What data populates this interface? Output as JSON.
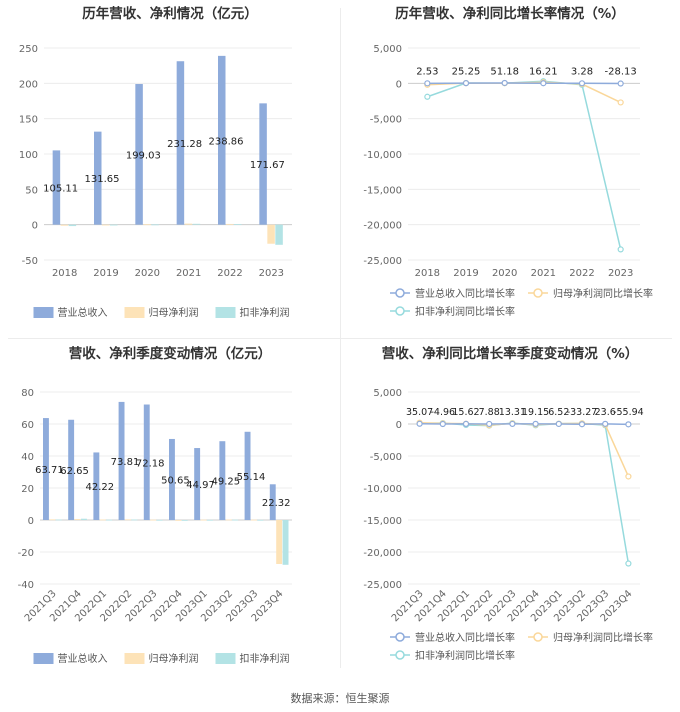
{
  "colors": {
    "revenue": "#8eabdb",
    "net_profit": "#fde3b8",
    "deducted_profit": "#b3e3e5",
    "revenue_growth": "#8eabdb",
    "net_profit_growth": "#fad79a",
    "deducted_profit_growth": "#96dadd"
  },
  "footer": "数据来源：恒生聚源",
  "chart_data": [
    {
      "id": "annual-revenue-profit",
      "type": "bar",
      "title": "历年营收、净利情况（亿元）",
      "categories": [
        "2018",
        "2019",
        "2020",
        "2021",
        "2022",
        "2023"
      ],
      "series": [
        {
          "name": "营业总收入",
          "values": [
            105.11,
            131.65,
            199.03,
            231.28,
            238.86,
            171.67
          ]
        },
        {
          "name": "归母净利润",
          "values": [
            -1.5,
            -0.5,
            0.5,
            1.5,
            1.0,
            -27.0
          ]
        },
        {
          "name": "扣非净利润",
          "values": [
            -2.0,
            -0.8,
            0.3,
            1.2,
            0.8,
            -28.5
          ]
        }
      ],
      "data_labels": [
        "105.11",
        "131.65",
        "199.03",
        "231.28",
        "238.86",
        "171.67"
      ],
      "yticks": [
        "250",
        "200",
        "150",
        "100",
        "50",
        "0",
        "-50"
      ],
      "ylim": [
        -50,
        250
      ],
      "legend": "bottom"
    },
    {
      "id": "annual-growth",
      "type": "line",
      "title": "历年营收、净利同比增长率情况（%）",
      "categories": [
        "2018",
        "2019",
        "2020",
        "2021",
        "2022",
        "2023"
      ],
      "series": [
        {
          "name": "营业总收入同比增长率",
          "values": [
            2.53,
            25.25,
            51.18,
            16.21,
            3.28,
            -28.13
          ]
        },
        {
          "name": "归母净利润同比增长率",
          "values": [
            -200,
            30,
            20,
            150,
            -100,
            -2700
          ]
        },
        {
          "name": "扣非净利润同比增长率",
          "values": [
            -1900,
            40,
            20,
            300,
            -200,
            -23500
          ]
        }
      ],
      "data_labels": [
        "2.53",
        "25.25",
        "51.18",
        "16.21",
        "3.28",
        "-28.13"
      ],
      "yticks": [
        "5,000",
        "0",
        "-5,000",
        "-10,000",
        "-15,000",
        "-20,000",
        "-25,000"
      ],
      "ylim": [
        -25000,
        5000
      ],
      "legend": "bottom"
    },
    {
      "id": "quarterly-revenue-profit",
      "type": "bar",
      "title": "营收、净利季度变动情况（亿元）",
      "categories": [
        "2021Q3",
        "2021Q4",
        "2022Q1",
        "2022Q2",
        "2022Q3",
        "2022Q4",
        "2023Q1",
        "2023Q2",
        "2023Q3",
        "2023Q4"
      ],
      "series": [
        {
          "name": "营业总收入",
          "values": [
            63.71,
            62.65,
            42.22,
            73.81,
            72.18,
            50.65,
            44.97,
            49.25,
            55.14,
            22.32
          ]
        },
        {
          "name": "归母净利润",
          "values": [
            0.4,
            0.6,
            0.3,
            0.4,
            0.2,
            -0.3,
            0.2,
            0.3,
            0.2,
            -27.5
          ]
        },
        {
          "name": "扣非净利润",
          "values": [
            0.3,
            0.8,
            0.2,
            0.3,
            0.1,
            -0.4,
            0.1,
            0.2,
            0.1,
            -28.0
          ]
        }
      ],
      "data_labels": [
        "63.71",
        "62.65",
        "42.22",
        "73.81",
        "72.18",
        "50.65",
        "44.97",
        "49.25",
        "55.14",
        "22.32"
      ],
      "yticks": [
        "80",
        "60",
        "40",
        "20",
        "0",
        "-20",
        "-40"
      ],
      "ylim": [
        -40,
        80
      ],
      "legend": "bottom"
    },
    {
      "id": "quarterly-growth",
      "type": "line",
      "title": "营收、净利同比增长率季度变动情况（%）",
      "categories": [
        "2021Q3",
        "2021Q4",
        "2022Q1",
        "2022Q2",
        "2022Q3",
        "2022Q4",
        "2023Q1",
        "2023Q2",
        "2023Q3",
        "2023Q4"
      ],
      "series": [
        {
          "name": "营业总收入同比增长率",
          "values": [
            35.07,
            -4.96,
            15.62,
            7.88,
            13.31,
            19.15,
            6.52,
            -33.27,
            23.6,
            -55.94
          ]
        },
        {
          "name": "归母净利润同比增长率",
          "values": [
            200,
            100,
            50,
            -200,
            100,
            -100,
            50,
            100,
            -100,
            -8200
          ]
        },
        {
          "name": "扣非净利润同比增长率",
          "values": [
            100,
            150,
            -150,
            -250,
            150,
            -200,
            50,
            100,
            -200,
            -21800
          ]
        }
      ],
      "data_labels": [
        "35.07",
        "-4.96",
        "15.62",
        "7.88",
        "13.31",
        "19.15",
        "6.52",
        "-33.27",
        "23.6",
        "-55.94"
      ],
      "yticks": [
        "5,000",
        "0",
        "-5,000",
        "-10,000",
        "-15,000",
        "-20,000",
        "-25,000"
      ],
      "ylim": [
        -25000,
        5000
      ],
      "legend": "bottom"
    }
  ]
}
